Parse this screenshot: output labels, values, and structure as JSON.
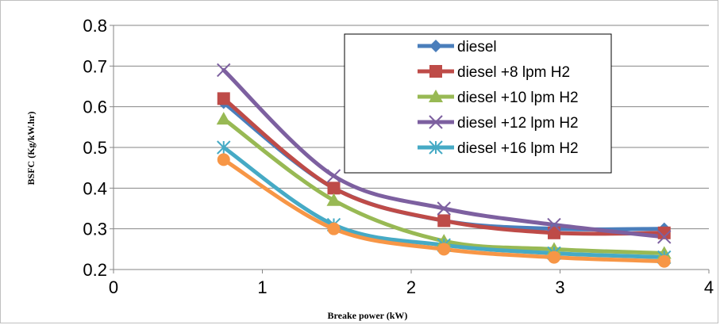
{
  "chart_data": {
    "type": "line",
    "title": "",
    "xlabel": "Breake power (kW)",
    "ylabel": "BSFC (Kg/kW.hr)",
    "xlim": [
      0,
      4
    ],
    "ylim": [
      0.2,
      0.8
    ],
    "xticks": [
      0,
      1,
      2,
      3,
      4
    ],
    "xtick_labels": [
      "0",
      "1",
      "2",
      "3",
      "4"
    ],
    "yticks": [
      0.2,
      0.3,
      0.4,
      0.5,
      0.6,
      0.7,
      0.8
    ],
    "ytick_labels": [
      "0.2",
      "0.3",
      "0.4",
      "0.5",
      "0.6",
      "0.7",
      "0.8"
    ],
    "grid": "horizontal",
    "legend_position": "top-right",
    "x": [
      0.74,
      1.48,
      2.22,
      2.96,
      3.7
    ],
    "series": [
      {
        "name": "diesel",
        "color": "#4a7ebb",
        "marker": "diamond",
        "values": [
          0.61,
          0.4,
          0.32,
          0.3,
          0.3
        ]
      },
      {
        "name": "diesel +8 lpm H2",
        "color": "#be4b48",
        "marker": "square",
        "values": [
          0.62,
          0.4,
          0.32,
          0.29,
          0.29
        ]
      },
      {
        "name": "diesel +10 lpm H2",
        "color": "#98b954",
        "marker": "triangle",
        "values": [
          0.57,
          0.37,
          0.27,
          0.25,
          0.24
        ]
      },
      {
        "name": "diesel +12 lpm H2",
        "color": "#7d60a0",
        "marker": "x",
        "values": [
          0.69,
          0.43,
          0.35,
          0.31,
          0.28
        ]
      },
      {
        "name": "diesel +16 lpm H2",
        "color": "#46aac5",
        "marker": "star",
        "values": [
          0.5,
          0.31,
          0.26,
          0.24,
          0.23
        ]
      },
      {
        "name": "",
        "color": "#f79646",
        "marker": "circle",
        "values": [
          0.47,
          0.3,
          0.25,
          0.23,
          0.22
        ]
      }
    ]
  }
}
